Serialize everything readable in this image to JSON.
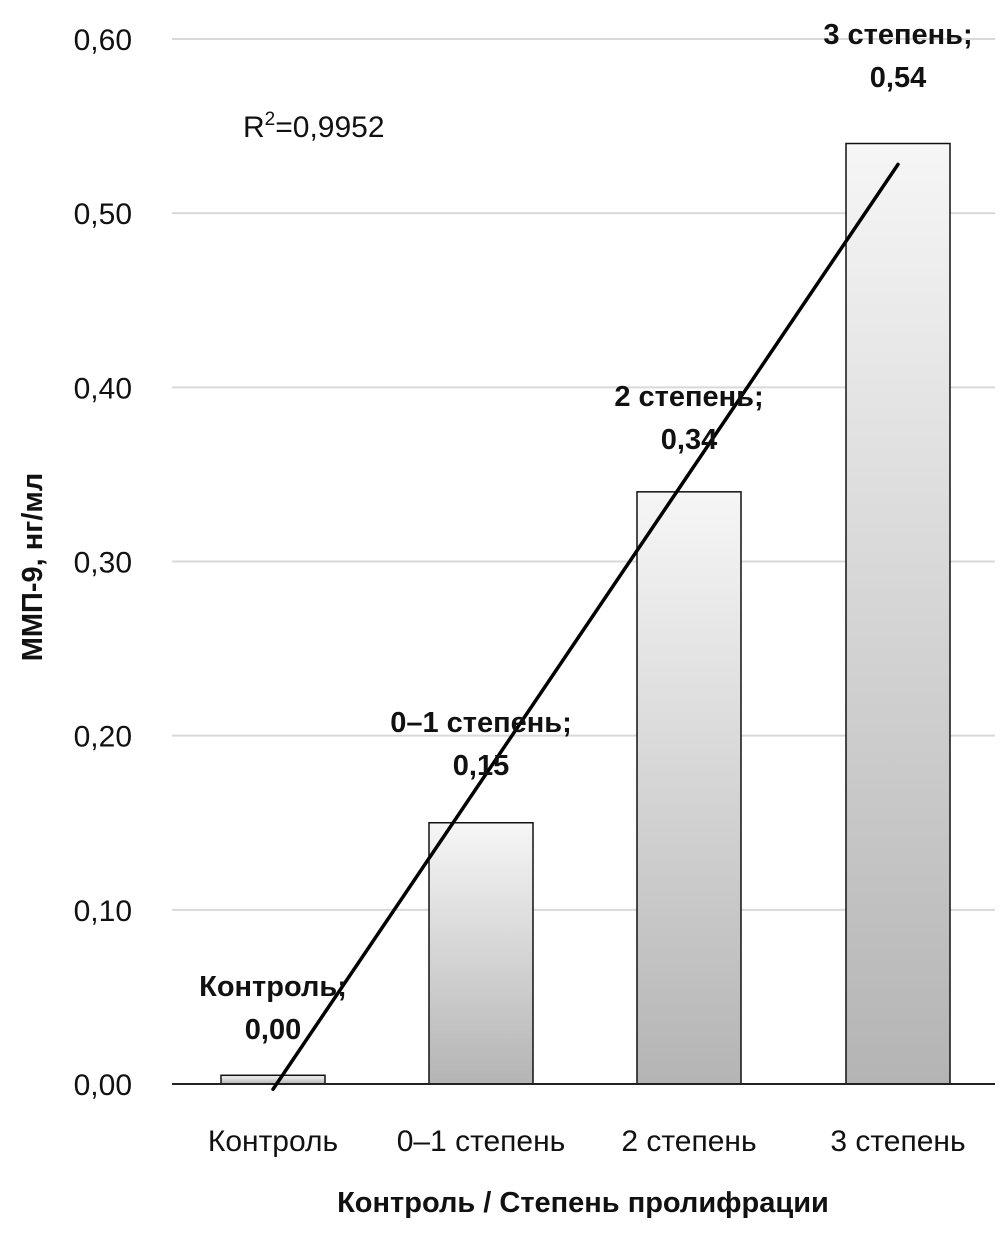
{
  "chart_data": {
    "type": "bar",
    "categories": [
      "Контроль",
      "0–1 степень",
      "2 степень",
      "3 степень"
    ],
    "values": [
      0.005,
      0.15,
      0.34,
      0.54
    ],
    "data_labels": [
      [
        "Контроль;",
        "0,00"
      ],
      [
        "0–1 степень;",
        "0,15"
      ],
      [
        "2 степень;",
        "0,34"
      ],
      [
        "3 степень;",
        "0,54"
      ]
    ],
    "title": "",
    "xlabel": "Контроль / Степень пролифрации",
    "ylabel": "ММП-9, нг/мл",
    "ylim": [
      0,
      0.6
    ],
    "yticks": [
      0,
      0.1,
      0.2,
      0.3,
      0.4,
      0.5,
      0.6
    ],
    "ytick_labels": [
      "0,00",
      "0,10",
      "0,20",
      "0,30",
      "0,40",
      "0,50",
      "0,60"
    ],
    "grid": true,
    "trendline": {
      "type": "linear",
      "start": [
        0,
        -0.003
      ],
      "end": [
        3,
        0.528
      ],
      "r2_label": "R",
      "r2_sup": "2",
      "r2_value": "=0,9952"
    },
    "colors": {
      "bar_top": "#f6f6f6",
      "bar_bottom": "#b4b4b4",
      "bar_stroke": "#111111",
      "grid": "#d9d9d9",
      "axis": "#222222",
      "trend": "#000000"
    }
  }
}
